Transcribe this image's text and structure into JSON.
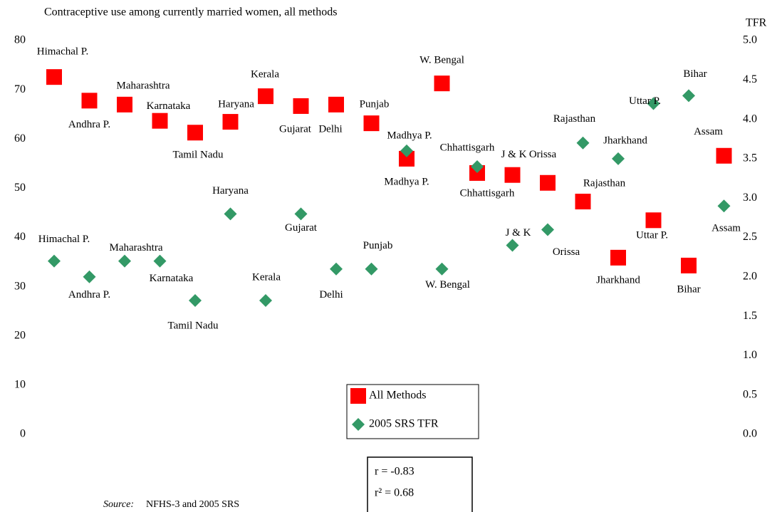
{
  "chart_data": {
    "type": "scatter",
    "title": "Contraceptive use among currently married women, all methods",
    "y2_axis_label": "TFR",
    "categories": [
      "Himachal P.",
      "Andhra P.",
      "Maharashtra",
      "Karnataka",
      "Tamil Nadu",
      "Haryana",
      "Kerala",
      "Gujarat",
      "Delhi",
      "Punjab",
      "Madhya P.",
      "W. Bengal",
      "Chhattisgarh",
      "J & K",
      "Orissa",
      "Rajasthan",
      "Jharkhand",
      "Uttar P.",
      "Bihar",
      "Assam"
    ],
    "series": [
      {
        "name": "All Methods",
        "color": "#ff0000",
        "marker": "square",
        "values": [
          72.6,
          67.8,
          67.0,
          63.7,
          61.3,
          63.5,
          68.7,
          66.7,
          67.0,
          63.2,
          56.0,
          71.3,
          53.1,
          52.7,
          51.1,
          47.3,
          35.9,
          43.5,
          34.3,
          56.6
        ]
      },
      {
        "name": "2005 SRS TFR",
        "color": "#339966",
        "marker": "diamond",
        "axis": "y2",
        "values": [
          2.2,
          2.0,
          2.2,
          2.2,
          1.7,
          2.8,
          1.7,
          2.8,
          2.1,
          2.1,
          3.6,
          2.1,
          3.4,
          2.4,
          2.6,
          3.7,
          3.5,
          4.2,
          4.3,
          2.9
        ]
      }
    ],
    "ylim": [
      0,
      80
    ],
    "yticks": [
      0,
      10,
      20,
      30,
      40,
      50,
      60,
      70,
      80
    ],
    "y2lim": [
      0,
      5
    ],
    "y2ticks": [
      {
        "value": 0,
        "label": "0.0"
      },
      0.5,
      {
        "value": 1,
        "label": "1.0"
      },
      1.5,
      {
        "value": 2,
        "label": "2.0"
      },
      2.5,
      {
        "value": 3,
        "label": "3.0"
      },
      3.5,
      {
        "value": 4,
        "label": "4.0"
      },
      4.5,
      {
        "value": 5,
        "label": "5.0"
      }
    ],
    "legend": "bottom-center",
    "stats": [
      "r  = -0.83",
      "r² =  0.68"
    ],
    "source_label": "Source:",
    "source": "NFHS-3 and 2005 SRS"
  }
}
